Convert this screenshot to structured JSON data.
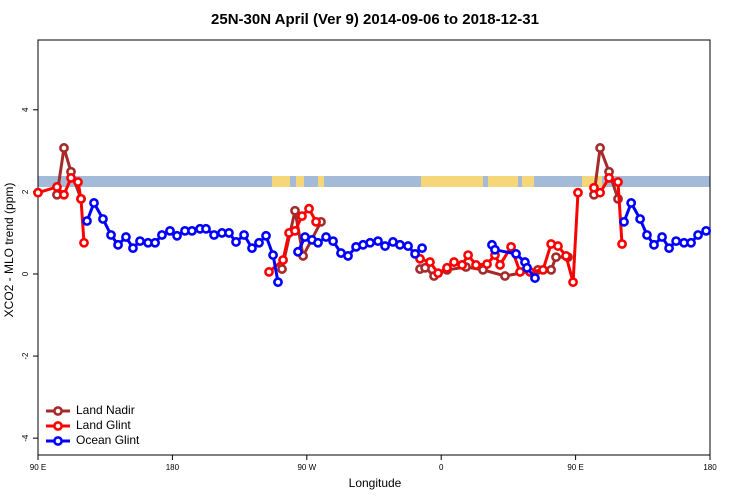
{
  "chart_data": {
    "type": "line",
    "title": "25N-30N April (Ver 9)   2014-09-06 to 2018-12-31",
    "x_label": "Longitude",
    "y_label": "XCO2 - MLO trend (ppm)",
    "xlim": [
      90,
      540
    ],
    "xticks": [
      {
        "value": 90,
        "label": "90 E"
      },
      180,
      {
        "value": 270,
        "label": "90 W"
      },
      {
        "value": 360,
        "label": "0"
      },
      {
        "value": 450,
        "label": "90 E"
      },
      {
        "value": 540,
        "label": "180"
      }
    ],
    "ylim": [
      -4.41,
      5.7
    ],
    "yticks": [
      -4,
      -2,
      0,
      2,
      4
    ],
    "legend": "bottomleft",
    "series": [
      {
        "name": "Land Nadir",
        "color": "#a52a2a",
        "x": [
          102.7,
          107.4,
          112.1,
          118.8,
          null,
          253.4,
          262.1,
          267.5,
          279.5,
          null,
          345.8,
          349.2,
          355.2,
          363.9,
          376.6,
          388,
          402.7,
          424.8,
          433.6,
          436.9,
          444.9,
          null,
          462.3,
          466.4,
          472.4,
          478.4
        ],
        "values": [
          1.93,
          3.07,
          2.49,
          1.83,
          null,
          0.12,
          1.54,
          0.44,
          1.27,
          null,
          0.12,
          0.15,
          -0.05,
          0.1,
          0.17,
          0.1,
          -0.05,
          0.1,
          0.1,
          0.41,
          0.41,
          null,
          1.93,
          3.07,
          2.49,
          1.83
        ]
      },
      {
        "name": "Land Glint",
        "color": "#ff0000",
        "x": [
          90,
          102.7,
          107.4,
          112.1,
          116.8,
          118.8,
          120.8,
          null,
          244.7,
          254.1,
          258.1,
          262.1,
          266.8,
          271.5,
          276.2,
          null,
          345.8,
          352.5,
          357.9,
          363.9,
          368.6,
          374,
          378,
          383.3,
          390.7,
          396,
          399.4,
          406.8,
          412.8,
          419.5,
          428.2,
          433.6,
          438.2,
          443.6,
          448.3,
          451.6,
          null,
          462.3,
          466.4,
          472.4,
          478.4,
          481.1
        ],
        "values": [
          1.98,
          2.12,
          1.93,
          2.34,
          2.24,
          1.83,
          0.76,
          null,
          0.05,
          0.34,
          1.0,
          1.05,
          1.41,
          1.59,
          1.27,
          null,
          0.37,
          0.29,
          0.02,
          0.15,
          0.29,
          0.22,
          0.46,
          0.22,
          0.24,
          0.46,
          0.22,
          0.66,
          0.05,
          0.05,
          0.1,
          0.73,
          0.68,
          0.44,
          -0.2,
          1.98,
          null,
          2.1,
          1.98,
          2.34,
          2.24,
          0.73
        ]
      },
      {
        "name": "Ocean Glint",
        "color": "#0000ff",
        "x": [
          122.8,
          127.5,
          133.5,
          138.9,
          143.6,
          148.9,
          153.6,
          158.3,
          163.7,
          168.4,
          173,
          178.4,
          183.1,
          188.4,
          193.1,
          198.5,
          202.5,
          207.9,
          213.2,
          217.9,
          222.6,
          228,
          233.3,
          238,
          242.7,
          247.4,
          250.7,
          null,
          264.1,
          268.8,
          273.5,
          277.5,
          282.9,
          287.6,
          292.9,
          297.6,
          303,
          307.7,
          312.4,
          317.7,
          322.4,
          327.7,
          332.4,
          337.8,
          342.5,
          347.2,
          null,
          394,
          396,
          410.1,
          416.1,
          417.5,
          422.8,
          null,
          482.4,
          487.2,
          493.2,
          497.8,
          502.5,
          507.9,
          512.6,
          517.3,
          522.6,
          527.3,
          532,
          537.4
        ],
        "values": [
          1.29,
          1.73,
          1.34,
          0.95,
          0.71,
          0.9,
          0.63,
          0.8,
          0.76,
          0.76,
          0.95,
          1.05,
          0.93,
          1.05,
          1.05,
          1.1,
          1.1,
          0.95,
          1.0,
          1.0,
          0.78,
          0.95,
          0.63,
          0.76,
          0.93,
          0.46,
          -0.2,
          null,
          0.54,
          0.9,
          0.83,
          0.76,
          0.9,
          0.8,
          0.51,
          0.44,
          0.66,
          0.71,
          0.76,
          0.8,
          0.68,
          0.78,
          0.71,
          0.68,
          0.49,
          0.63,
          null,
          0.71,
          0.59,
          0.49,
          0.29,
          0.15,
          -0.1,
          null,
          1.27,
          1.73,
          1.34,
          0.95,
          0.71,
          0.9,
          0.63,
          0.8,
          0.76,
          0.76,
          0.95,
          1.05
        ]
      }
    ]
  }
}
